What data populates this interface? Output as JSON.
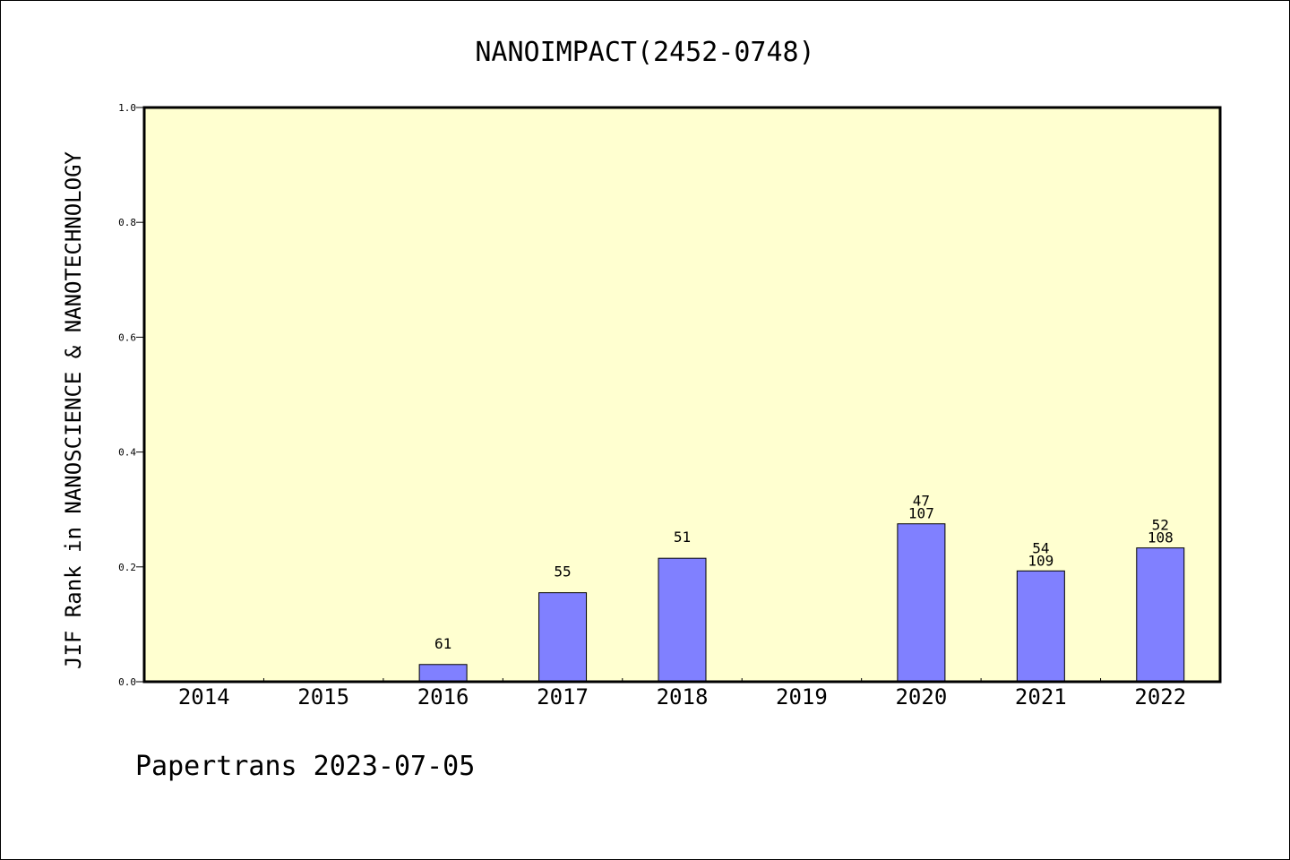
{
  "chart_data": {
    "type": "bar",
    "title": "NANOIMPACT(2452-0748)",
    "xlabel": "",
    "ylabel": "JIF Rank in NANOSCIENCE & NANOTECHNOLOGY",
    "categories": [
      "2014",
      "2015",
      "2016",
      "2017",
      "2018",
      "2019",
      "2020",
      "2021",
      "2022"
    ],
    "values": [
      null,
      null,
      0.03,
      0.155,
      0.215,
      null,
      0.275,
      0.193,
      0.233
    ],
    "bar_labels": [
      [],
      [],
      [
        "61"
      ],
      [
        "55"
      ],
      [
        "51"
      ],
      [],
      [
        "47",
        "107"
      ],
      [
        "54",
        "109"
      ],
      [
        "52",
        "108"
      ]
    ],
    "ylim": [
      0,
      1.0
    ],
    "yticks": [
      "0.0",
      "0.2",
      "0.4",
      "0.6",
      "0.8",
      "1.0"
    ],
    "grid": false,
    "colors": {
      "plot_background": "#ffffd0",
      "bar_fill": "#8080ff",
      "bar_stroke": "#000000"
    }
  },
  "footer": "Papertrans 2023-07-05"
}
